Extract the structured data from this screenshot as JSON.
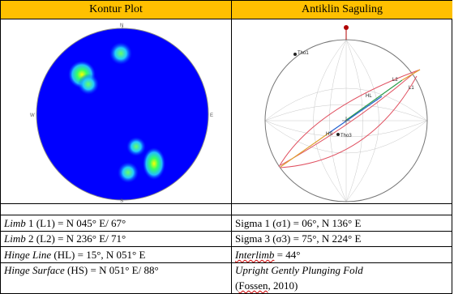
{
  "headers": {
    "left": "Kontur Plot",
    "right": "Antiklin Saguling"
  },
  "kontur": {
    "dir_n": "N",
    "dir_e": "E",
    "dir_w": "W",
    "dir_s": "S",
    "colors": {
      "background": "#0000ff",
      "low": "#22bfff",
      "mid": "#33ff66",
      "high": "#ffff00"
    }
  },
  "stereonet": {
    "labels": {
      "tho1": "Tho1",
      "tho3": "Tho3",
      "l1": "L1",
      "l2": "L2",
      "hl": "HL",
      "hs": "HS"
    },
    "colors": {
      "great_circle": "#e05060",
      "grid": "#b0b0b0",
      "hinge_line_1": "#2a9d4a",
      "hinge_line_2": "#2060d0",
      "hinge_line_3": "#e0a030"
    }
  },
  "rows": [
    {
      "left_italic": "Limb",
      "left_rest": " 1 (L1) = N 045° E/ 67°",
      "right": "Sigma 1 (σ1) = 06°, N 136° E"
    },
    {
      "left_italic": "Limb",
      "left_rest": " 2 (L2) = N 236° E/ 71°",
      "right": "Sigma 3 (σ3) = 75°, N 224° E"
    },
    {
      "left_italic": "Hinge Line",
      "left_rest": " (HL) = 15°, N 051° E",
      "right_underlined": "Interlimb",
      "right_rest": " = 44°"
    },
    {
      "left_italic": "Hinge Surface",
      "left_rest": " (HS) = N 051° E/ 88°",
      "right_line1": "Upright Gently Plunging Fold",
      "right_line2_a": "(",
      "right_line2_b": "Fossen",
      "right_line2_c": ", 2010)"
    }
  ]
}
